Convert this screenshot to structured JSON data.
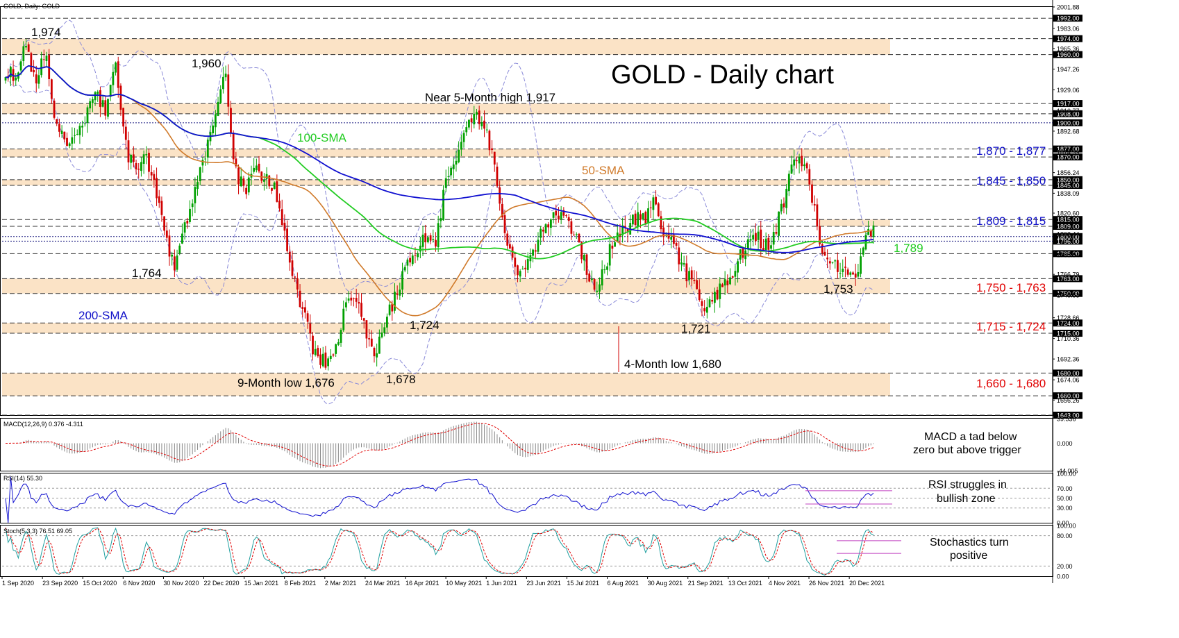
{
  "chart_data": {
    "type": "candlestick",
    "symbol_header": "GOLD, Daily:  GOLD",
    "title": "GOLD - Daily chart",
    "colors": {
      "up_candle": "#00a000",
      "down_candle": "#d00000",
      "sma50": "#d07a2a",
      "sma100": "#22cc22",
      "sma200": "#1010d0",
      "bollinger": "#8a8ad8",
      "zone_fill": "#fbe3c6",
      "annotation_blue": "#1010c8",
      "annotation_red": "#e00000",
      "annotation_green": "#22cc22"
    },
    "x_tick_labels": [
      "1 Sep 2020",
      "23 Sep 2020",
      "15 Oct 2020",
      "6 Nov 2020",
      "30 Nov 2020",
      "22 Dec 2020",
      "15 Jan 2021",
      "8 Feb 2021",
      "2 Mar 2021",
      "24 Mar 2021",
      "16 Apr 2021",
      "10 May 2021",
      "1 Jun 2021",
      "23 Jun 2021",
      "15 Jul 2021",
      "6 Aug 2021",
      "30 Aug 2021",
      "21 Sep 2021",
      "13 Oct 2021",
      "4 Nov 2021",
      "26 Nov 2021",
      "20 Dec 2021"
    ],
    "main_panel": {
      "ylim": [
        1643.0,
        2001.88
      ],
      "y_tick_labels": [
        "2001.88",
        "1983.06",
        "1965.36",
        "1947.26",
        "1929.06",
        "1910.77",
        "1892.68",
        "1874.39",
        "1856.24",
        "1838.09",
        "1820.60",
        "1802.44",
        "1783.94",
        "1766.79",
        "1748.53",
        "1728.66",
        "1710.36",
        "1692.36",
        "1674.06",
        "1656.26"
      ],
      "highlighted_levels": [
        "1992.00",
        "1974.00",
        "1960.00",
        "1917.00",
        "1908.00",
        "1900.00",
        "1877.00",
        "1870.00",
        "1850.00",
        "1845.00",
        "1815.00",
        "1809.00",
        "1800.00",
        "1796.00",
        "1785.00",
        "1763.00",
        "1750.00",
        "1724.00",
        "1715.00",
        "1680.00",
        "1660.00",
        "1643.00"
      ],
      "zones": [
        {
          "from": 1960,
          "to": 1974
        },
        {
          "from": 1908,
          "to": 1917
        },
        {
          "from": 1870,
          "to": 1877
        },
        {
          "from": 1845,
          "to": 1850
        },
        {
          "from": 1750,
          "to": 1763
        },
        {
          "from": 1715,
          "to": 1724
        },
        {
          "from": 1660,
          "to": 1680
        }
      ],
      "zone_partial": {
        "from": 1809,
        "to": 1815
      },
      "annotations": {
        "a1974": "1,974",
        "a1960": "1,960",
        "a1764": "1,764",
        "a1917": "Near 5-Month high 1,917",
        "a1724": "1,724",
        "a1676": "9-Month low 1,676",
        "a1678": "1,678",
        "a1680": "4-Month low 1,680",
        "a1721": "1,721",
        "a1753": "1,753",
        "sma100_label": "100-SMA",
        "sma50_label": "50-SMA",
        "sma200_label": "200-SMA",
        "r1": "1,870 - 1,877",
        "r2": "1,845 - 1,850",
        "r3": "1,809 - 1,815",
        "r4": "1,789",
        "s1": "1,750 - 1,763",
        "s2": "1,715 - 1,724",
        "s3": "1,660 - 1,680"
      },
      "anchors": [
        1945,
        1940,
        1970,
        1935,
        1960,
        1900,
        1880,
        1885,
        1905,
        1925,
        1910,
        1955,
        1880,
        1855,
        1875,
        1840,
        1800,
        1770,
        1810,
        1845,
        1870,
        1905,
        1950,
        1860,
        1840,
        1865,
        1850,
        1840,
        1800,
        1760,
        1730,
        1695,
        1690,
        1700,
        1735,
        1750,
        1720,
        1690,
        1725,
        1745,
        1770,
        1780,
        1800,
        1790,
        1840,
        1870,
        1890,
        1905,
        1900,
        1860,
        1800,
        1770,
        1775,
        1790,
        1810,
        1815,
        1820,
        1800,
        1780,
        1750,
        1770,
        1800,
        1805,
        1815,
        1815,
        1830,
        1805,
        1790,
        1770,
        1760,
        1735,
        1745,
        1760,
        1770,
        1790,
        1805,
        1790,
        1800,
        1830,
        1870,
        1865,
        1830,
        1780,
        1775,
        1770,
        1760,
        1790,
        1810
      ]
    },
    "macd_panel": {
      "header": "MACD(12,26,9) 0.376 -4.311",
      "ylim": [
        -44.005,
        39.536
      ],
      "y_tick_labels": [
        "39.536",
        "0.000",
        "-44.005"
      ],
      "note": "MACD a tad below zero but above trigger"
    },
    "rsi_panel": {
      "header": "RSI(14) 55.30",
      "ylim": [
        0,
        100
      ],
      "y_tick_labels": [
        "100.00",
        "70.00",
        "50.00",
        "30.00",
        "0.00"
      ],
      "note": "RSI struggles in bullish zone"
    },
    "stoch_panel": {
      "header": "Stoch(5,3,3) 76.51 69.05",
      "ylim": [
        0,
        100
      ],
      "y_tick_labels": [
        "100.00",
        "80.00",
        "20.00",
        "0.00"
      ],
      "note": "Stochastics turn positive"
    }
  }
}
